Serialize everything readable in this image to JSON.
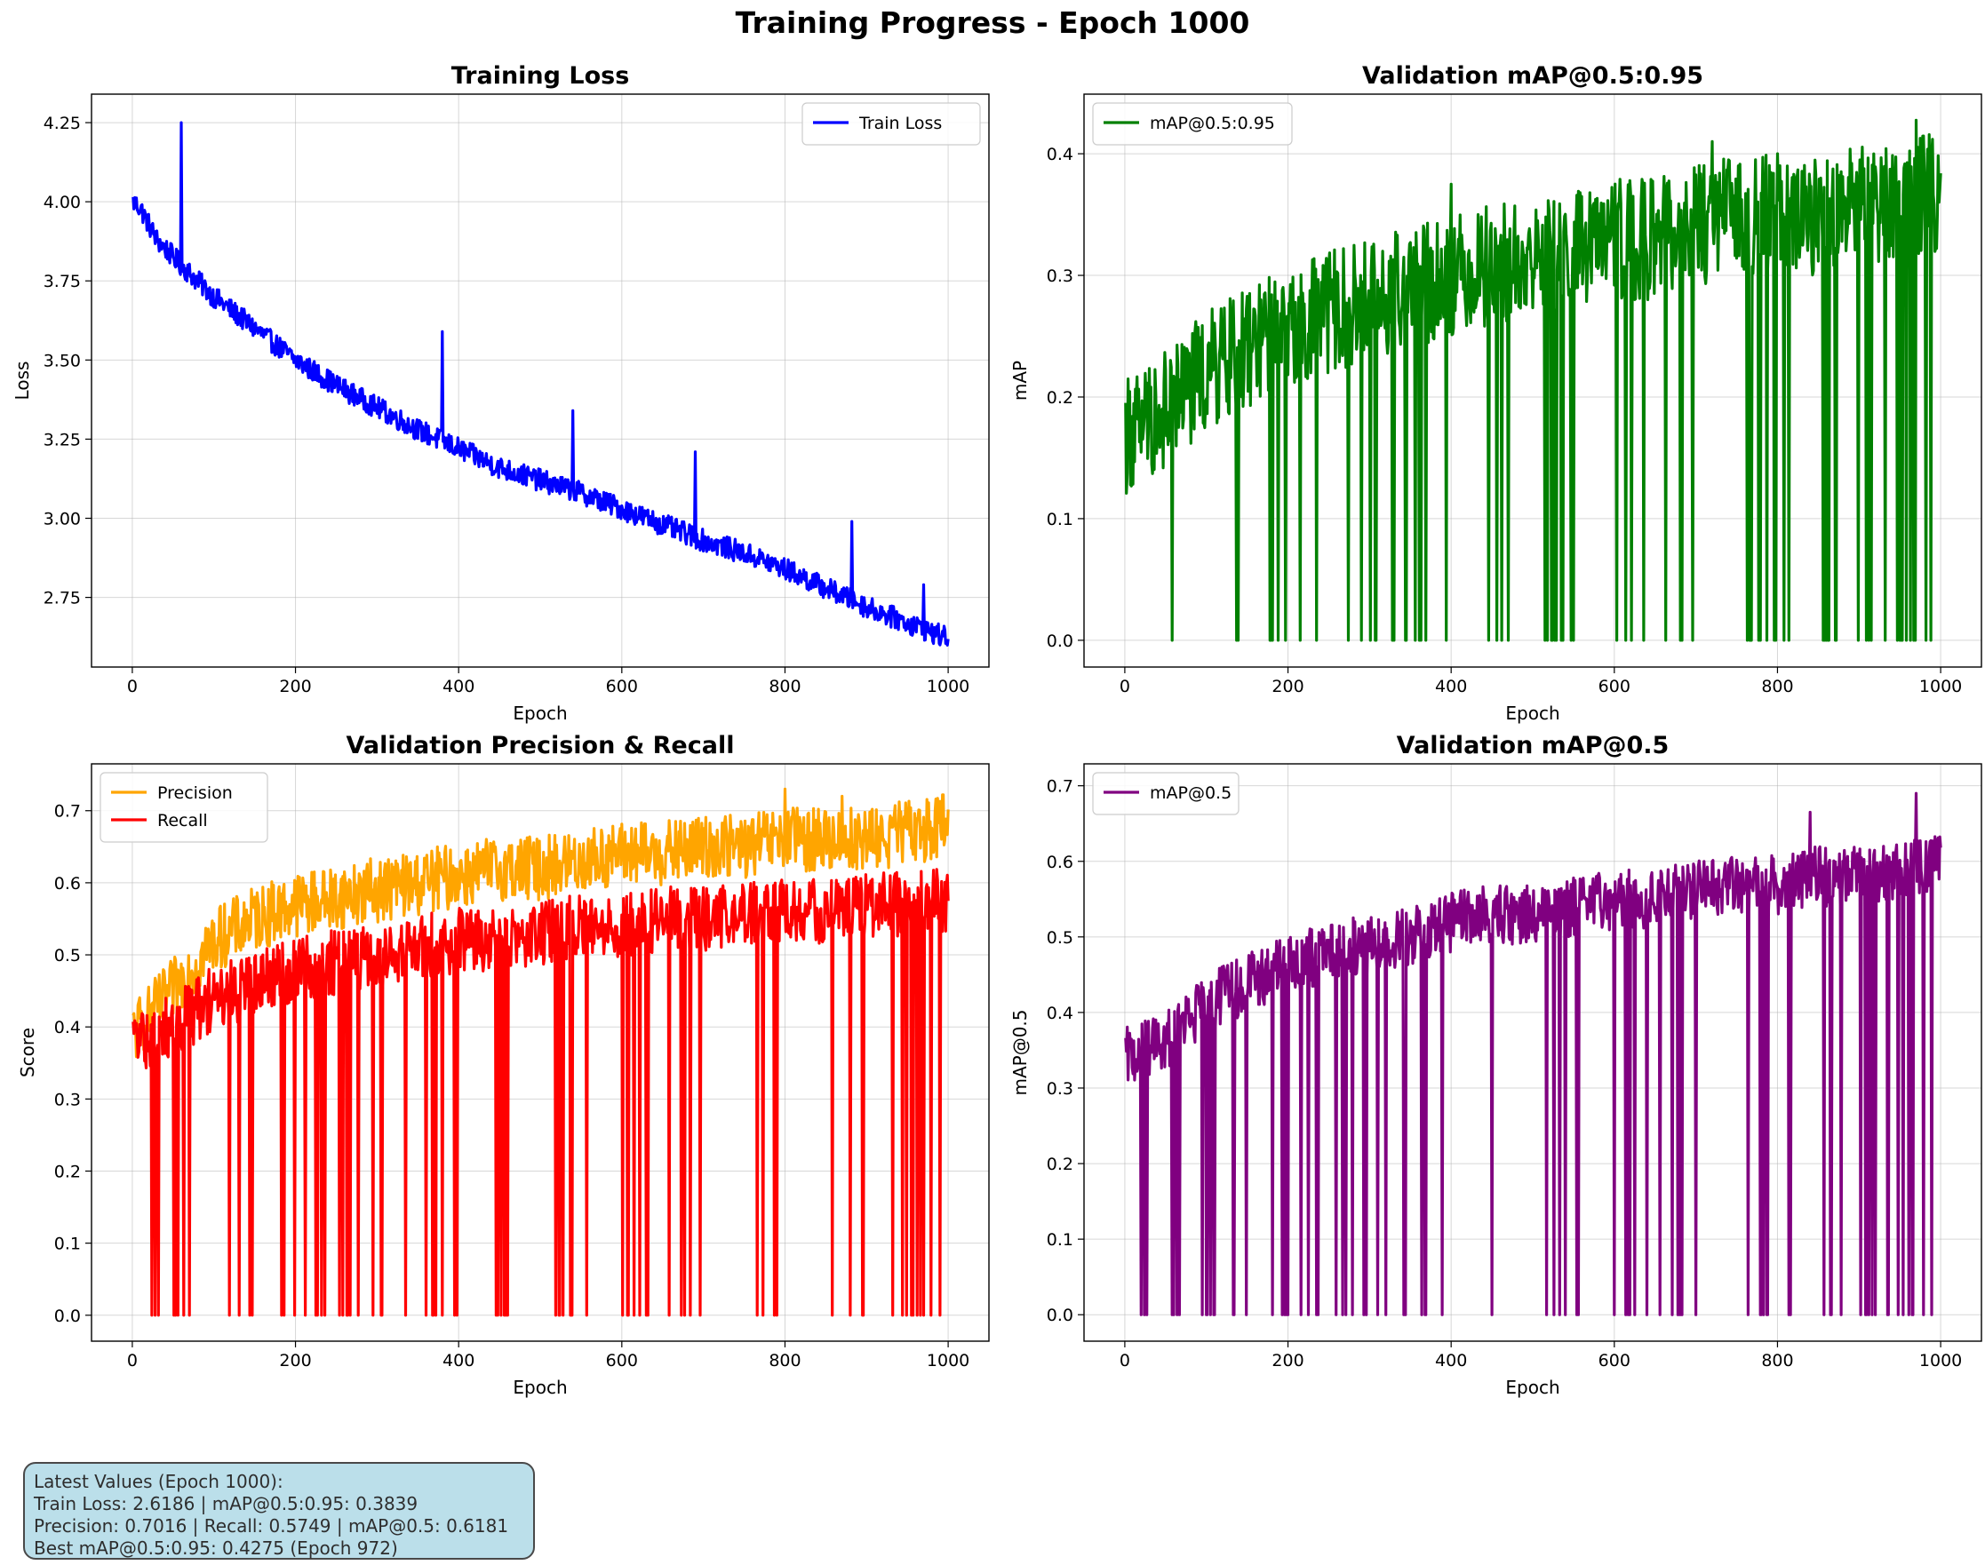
{
  "figure": {
    "title": "Training Progress - Epoch 1000"
  },
  "info_box": {
    "lines": [
      "Latest Values (Epoch 1000):",
      "Train Loss: 2.6186 | mAP@0.5:0.95: 0.3839",
      "Precision: 0.7016 | Recall: 0.5749 | mAP@0.5: 0.6181",
      "Best mAP@0.5:0.95: 0.4275 (Epoch 972)"
    ]
  },
  "chart_data": [
    {
      "id": "loss",
      "type": "line",
      "title": "Training Loss",
      "xlabel": "Epoch",
      "ylabel": "Loss",
      "xlim": [
        -50,
        1050
      ],
      "ylim": [
        2.53,
        4.34
      ],
      "xticks": [
        0,
        200,
        400,
        600,
        800,
        1000
      ],
      "yticks": [
        2.75,
        3.0,
        3.25,
        3.5,
        3.75,
        4.0,
        4.25
      ],
      "ytick_decimals": 2,
      "grid": true,
      "legend": "upper-right",
      "series": [
        {
          "name": "Train Loss",
          "color": "#0000ff",
          "keypoints": [
            [
              1,
              4.0
            ],
            [
              10,
              3.98
            ],
            [
              30,
              3.88
            ],
            [
              60,
              3.8
            ],
            [
              100,
              3.7
            ],
            [
              150,
              3.6
            ],
            [
              200,
              3.5
            ],
            [
              250,
              3.42
            ],
            [
              300,
              3.35
            ],
            [
              350,
              3.28
            ],
            [
              400,
              3.22
            ],
            [
              450,
              3.16
            ],
            [
              500,
              3.12
            ],
            [
              550,
              3.08
            ],
            [
              600,
              3.03
            ],
            [
              650,
              2.98
            ],
            [
              700,
              2.93
            ],
            [
              750,
              2.89
            ],
            [
              800,
              2.84
            ],
            [
              850,
              2.78
            ],
            [
              900,
              2.72
            ],
            [
              950,
              2.67
            ],
            [
              1000,
              2.62
            ]
          ],
          "spikes": [
            [
              60,
              4.25
            ],
            [
              380,
              3.59
            ],
            [
              540,
              3.34
            ],
            [
              690,
              3.21
            ],
            [
              882,
              2.99
            ],
            [
              970,
              2.79
            ]
          ],
          "noise": 0.035,
          "last": 2.6186
        }
      ]
    },
    {
      "id": "map95",
      "type": "line",
      "title": "Validation mAP@0.5:0.95",
      "xlabel": "Epoch",
      "ylabel": "mAP",
      "xlim": [
        -50,
        1050
      ],
      "ylim": [
        -0.022,
        0.449
      ],
      "xticks": [
        0,
        200,
        400,
        600,
        800,
        1000
      ],
      "yticks": [
        0.0,
        0.1,
        0.2,
        0.3,
        0.4
      ],
      "ytick_decimals": 1,
      "grid": true,
      "legend": "upper-left",
      "series": [
        {
          "name": "mAP@0.5:0.95",
          "color": "#008000",
          "keypoints": [
            [
              1,
              0.17
            ],
            [
              50,
              0.19
            ],
            [
              100,
              0.22
            ],
            [
              150,
              0.24
            ],
            [
              200,
              0.26
            ],
            [
              250,
              0.27
            ],
            [
              300,
              0.28
            ],
            [
              350,
              0.29
            ],
            [
              400,
              0.3
            ],
            [
              450,
              0.31
            ],
            [
              500,
              0.31
            ],
            [
              550,
              0.32
            ],
            [
              600,
              0.33
            ],
            [
              650,
              0.33
            ],
            [
              700,
              0.34
            ],
            [
              750,
              0.35
            ],
            [
              800,
              0.35
            ],
            [
              850,
              0.35
            ],
            [
              900,
              0.36
            ],
            [
              950,
              0.36
            ],
            [
              1000,
              0.37
            ]
          ],
          "spikes": [
            [
              970,
              0.4275
            ],
            [
              720,
              0.41
            ],
            [
              800,
              0.4
            ],
            [
              400,
              0.375
            ]
          ],
          "noise": 0.05,
          "dropouts": [
            [
              15,
              35
            ],
            [
              50,
              70
            ],
            [
              95,
              120
            ],
            [
              130,
              155
            ],
            [
              175,
              200
            ],
            [
              210,
              240
            ],
            [
              250,
              280
            ],
            [
              285,
              310
            ],
            [
              320,
              345
            ],
            [
              355,
              400
            ],
            [
              445,
              470
            ],
            [
              515,
              560
            ],
            [
              600,
              640
            ],
            [
              655,
              700
            ],
            [
              760,
              790
            ],
            [
              795,
              820
            ],
            [
              855,
              880
            ],
            [
              895,
              920
            ],
            [
              930,
              990
            ]
          ],
          "last": 0.3839
        }
      ]
    },
    {
      "id": "precrec",
      "type": "line",
      "title": "Validation Precision & Recall",
      "xlabel": "Epoch",
      "ylabel": "Score",
      "xlim": [
        -50,
        1050
      ],
      "ylim": [
        -0.036,
        0.765
      ],
      "xticks": [
        0,
        200,
        400,
        600,
        800,
        1000
      ],
      "yticks": [
        0.0,
        0.1,
        0.2,
        0.3,
        0.4,
        0.5,
        0.6,
        0.7
      ],
      "ytick_decimals": 1,
      "grid": true,
      "legend": "upper-left",
      "series": [
        {
          "name": "Precision",
          "color": "#ffa500",
          "keypoints": [
            [
              1,
              0.39
            ],
            [
              50,
              0.45
            ],
            [
              100,
              0.52
            ],
            [
              150,
              0.55
            ],
            [
              200,
              0.57
            ],
            [
              250,
              0.58
            ],
            [
              300,
              0.59
            ],
            [
              350,
              0.6
            ],
            [
              400,
              0.61
            ],
            [
              450,
              0.62
            ],
            [
              500,
              0.62
            ],
            [
              550,
              0.63
            ],
            [
              600,
              0.64
            ],
            [
              650,
              0.64
            ],
            [
              700,
              0.65
            ],
            [
              750,
              0.65
            ],
            [
              800,
              0.66
            ],
            [
              850,
              0.66
            ],
            [
              900,
              0.66
            ],
            [
              950,
              0.67
            ],
            [
              1000,
              0.68
            ]
          ],
          "spikes": [
            [
              800,
              0.73
            ],
            [
              870,
              0.72
            ]
          ],
          "noise": 0.045,
          "last": 0.7016
        },
        {
          "name": "Recall",
          "color": "#ff0000",
          "keypoints": [
            [
              1,
              0.38
            ],
            [
              50,
              0.4
            ],
            [
              100,
              0.44
            ],
            [
              150,
              0.46
            ],
            [
              200,
              0.48
            ],
            [
              250,
              0.49
            ],
            [
              300,
              0.5
            ],
            [
              350,
              0.51
            ],
            [
              400,
              0.52
            ],
            [
              450,
              0.52
            ],
            [
              500,
              0.53
            ],
            [
              550,
              0.54
            ],
            [
              600,
              0.54
            ],
            [
              650,
              0.55
            ],
            [
              700,
              0.55
            ],
            [
              750,
              0.56
            ],
            [
              800,
              0.56
            ],
            [
              850,
              0.56
            ],
            [
              900,
              0.57
            ],
            [
              950,
              0.57
            ],
            [
              1000,
              0.575
            ]
          ],
          "spikes": [
            [
              970,
              0.65
            ]
          ],
          "noise": 0.045,
          "dropouts": [
            [
              15,
              35
            ],
            [
              50,
              70
            ],
            [
              95,
              120
            ],
            [
              130,
              155
            ],
            [
              175,
              200
            ],
            [
              210,
              240
            ],
            [
              250,
              280
            ],
            [
              285,
              310
            ],
            [
              320,
              345
            ],
            [
              355,
              400
            ],
            [
              445,
              470
            ],
            [
              515,
              560
            ],
            [
              600,
              640
            ],
            [
              655,
              700
            ],
            [
              760,
              790
            ],
            [
              795,
              820
            ],
            [
              855,
              880
            ],
            [
              895,
              920
            ],
            [
              930,
              990
            ]
          ],
          "last": 0.5749
        }
      ]
    },
    {
      "id": "map50",
      "type": "line",
      "title": "Validation mAP@0.5",
      "xlabel": "Epoch",
      "ylabel": "mAP@0.5",
      "xlim": [
        -50,
        1050
      ],
      "ylim": [
        -0.035,
        0.729
      ],
      "xticks": [
        0,
        200,
        400,
        600,
        800,
        1000
      ],
      "yticks": [
        0.0,
        0.1,
        0.2,
        0.3,
        0.4,
        0.5,
        0.6,
        0.7
      ],
      "ytick_decimals": 1,
      "grid": true,
      "legend": "upper-left",
      "series": [
        {
          "name": "mAP@0.5",
          "color": "#800080",
          "keypoints": [
            [
              1,
              0.34
            ],
            [
              50,
              0.36
            ],
            [
              100,
              0.41
            ],
            [
              150,
              0.44
            ],
            [
              200,
              0.46
            ],
            [
              250,
              0.48
            ],
            [
              300,
              0.49
            ],
            [
              350,
              0.5
            ],
            [
              400,
              0.52
            ],
            [
              450,
              0.53
            ],
            [
              500,
              0.53
            ],
            [
              550,
              0.54
            ],
            [
              600,
              0.55
            ],
            [
              650,
              0.55
            ],
            [
              700,
              0.56
            ],
            [
              750,
              0.57
            ],
            [
              800,
              0.57
            ],
            [
              850,
              0.58
            ],
            [
              900,
              0.58
            ],
            [
              950,
              0.59
            ],
            [
              1000,
              0.6
            ]
          ],
          "spikes": [
            [
              970,
              0.69
            ],
            [
              840,
              0.665
            ]
          ],
          "noise": 0.04,
          "dropouts": [
            [
              15,
              35
            ],
            [
              50,
              70
            ],
            [
              95,
              120
            ],
            [
              130,
              155
            ],
            [
              175,
              200
            ],
            [
              210,
              240
            ],
            [
              250,
              280
            ],
            [
              285,
              310
            ],
            [
              320,
              345
            ],
            [
              355,
              400
            ],
            [
              445,
              470
            ],
            [
              515,
              560
            ],
            [
              600,
              640
            ],
            [
              655,
              700
            ],
            [
              760,
              790
            ],
            [
              795,
              820
            ],
            [
              855,
              880
            ],
            [
              895,
              920
            ],
            [
              930,
              990
            ]
          ],
          "last": 0.6181
        }
      ]
    }
  ]
}
